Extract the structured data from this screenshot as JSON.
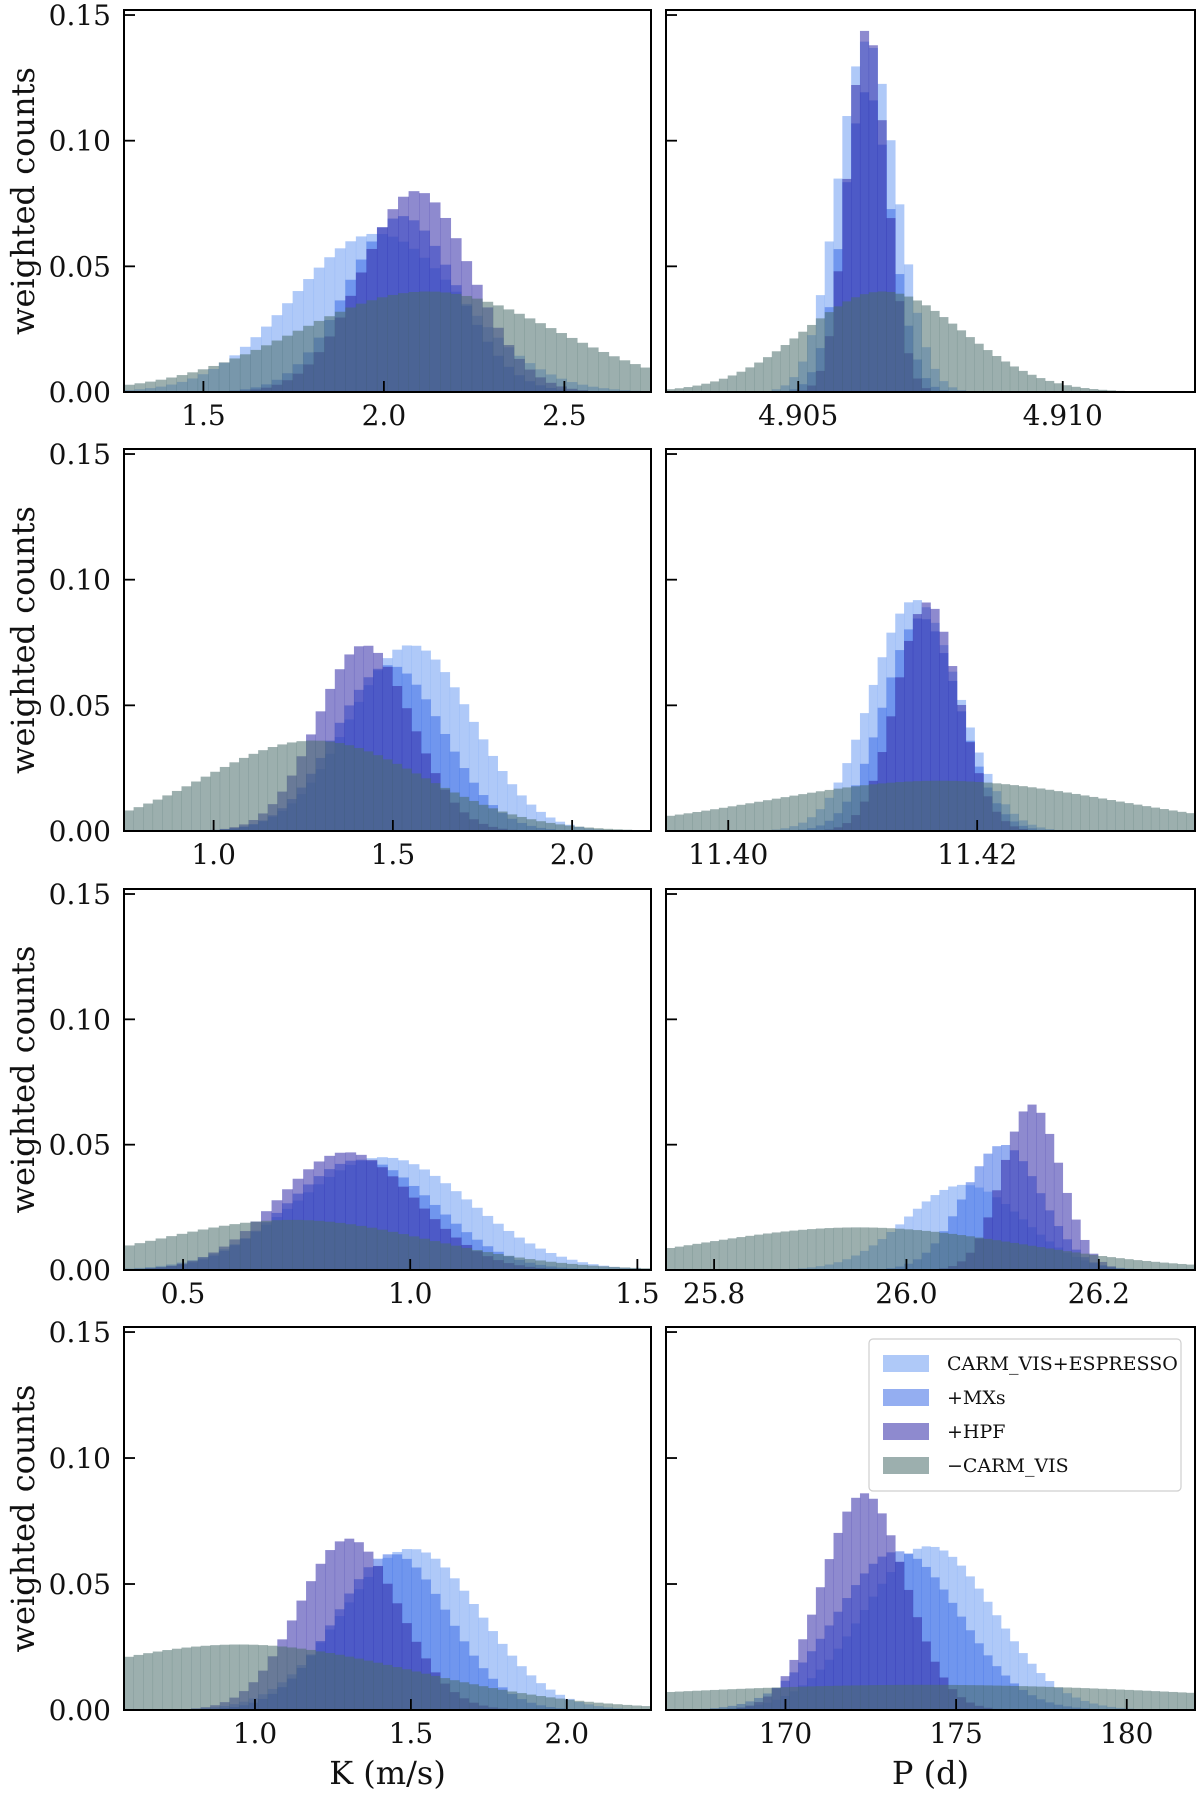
{
  "chart_data": {
    "type": "histogram-grid",
    "rows": 4,
    "columns": 2,
    "ylabel": "weighted counts",
    "xlabels": [
      "K (m/s)",
      "P (d)"
    ],
    "ylim": [
      0,
      0.152
    ],
    "yticks": [
      0.0,
      0.05,
      0.1,
      0.15
    ],
    "ytick_labels": [
      "0.00",
      "0.05",
      "0.10",
      "0.15"
    ],
    "series": [
      {
        "name": "CARM_VIS+ESPRESSO",
        "color": "#6e9cf2",
        "opacity": 0.55
      },
      {
        "name": "+MXs",
        "color": "#3d6ce6",
        "opacity": 0.55
      },
      {
        "name": "+HPF",
        "color": "#322aa8",
        "opacity": 0.55
      },
      {
        "name": "−CARM_VIS",
        "color": "#4b6d6b",
        "opacity": 0.55
      }
    ],
    "legend": {
      "panel": 7,
      "location": "top-right"
    },
    "panels": [
      {
        "row": 0,
        "col": 0,
        "xlim": [
          1.28,
          2.74
        ],
        "xticks": [
          1.5,
          2.0,
          2.5
        ],
        "xtick_labels": [
          "1.5",
          "2.0",
          "2.5"
        ],
        "bins": 50,
        "dists": [
          {
            "mu": 1.98,
            "sigma": 0.23,
            "peak": 0.063
          },
          {
            "mu": 2.05,
            "sigma": 0.15,
            "peak": 0.07
          },
          {
            "mu": 2.09,
            "sigma": 0.15,
            "peak": 0.08
          },
          {
            "mu": 2.12,
            "sigma": 0.36,
            "peak": 0.04
          }
        ]
      },
      {
        "row": 0,
        "col": 1,
        "xlim": [
          4.9025,
          4.9125
        ],
        "xticks": [
          4.905,
          4.91
        ],
        "xtick_labels": [
          "4.905",
          "4.910"
        ],
        "bins": 60,
        "dists": [
          {
            "mu": 4.9063,
            "sigma": 0.00055,
            "peak": 0.14
          },
          {
            "mu": 4.9063,
            "sigma": 0.00045,
            "peak": 0.12
          },
          {
            "mu": 4.9063,
            "sigma": 0.00037,
            "peak": 0.145
          },
          {
            "mu": 4.9066,
            "sigma": 0.0015,
            "peak": 0.04
          }
        ]
      },
      {
        "row": 1,
        "col": 0,
        "xlim": [
          0.75,
          2.22
        ],
        "xticks": [
          1.0,
          1.5,
          2.0
        ],
        "xtick_labels": [
          "1.0",
          "1.5",
          "2.0"
        ],
        "bins": 55,
        "dists": [
          {
            "mu": 1.55,
            "sigma": 0.17,
            "peak": 0.074
          },
          {
            "mu": 1.49,
            "sigma": 0.15,
            "peak": 0.066
          },
          {
            "mu": 1.42,
            "sigma": 0.13,
            "peak": 0.074
          },
          {
            "mu": 1.28,
            "sigma": 0.3,
            "peak": 0.036
          }
        ]
      },
      {
        "row": 1,
        "col": 1,
        "xlim": [
          11.395,
          11.4375
        ],
        "xticks": [
          11.4,
          11.42
        ],
        "xtick_labels": [
          "11.40",
          "11.42"
        ],
        "bins": 60,
        "dists": [
          {
            "mu": 11.415,
            "sigma": 0.0035,
            "peak": 0.092
          },
          {
            "mu": 11.4155,
            "sigma": 0.003,
            "peak": 0.085
          },
          {
            "mu": 11.416,
            "sigma": 0.0025,
            "peak": 0.091
          },
          {
            "mu": 11.417,
            "sigma": 0.014,
            "peak": 0.02
          }
        ]
      },
      {
        "row": 2,
        "col": 0,
        "xlim": [
          0.37,
          1.53
        ],
        "xticks": [
          0.5,
          1.0,
          1.5
        ],
        "xtick_labels": [
          "0.5",
          "1.0",
          "1.5"
        ],
        "bins": 50,
        "dists": [
          {
            "mu": 0.94,
            "sigma": 0.19,
            "peak": 0.045
          },
          {
            "mu": 0.89,
            "sigma": 0.16,
            "peak": 0.044
          },
          {
            "mu": 0.86,
            "sigma": 0.15,
            "peak": 0.047
          },
          {
            "mu": 0.74,
            "sigma": 0.3,
            "peak": 0.02
          }
        ]
      },
      {
        "row": 2,
        "col": 1,
        "xlim": [
          25.75,
          26.3
        ],
        "xticks": [
          25.8,
          26.0,
          26.2
        ],
        "xtick_labels": [
          "25.8",
          "26.0",
          "26.2"
        ],
        "bins": 60,
        "dists": [
          {
            "mu": 26.06,
            "sigma": 0.06,
            "peak": 0.034
          },
          {
            "mu": 26.1,
            "sigma": 0.04,
            "peak": 0.05
          },
          {
            "mu": 26.13,
            "sigma": 0.03,
            "peak": 0.066
          },
          {
            "mu": 25.95,
            "sigma": 0.17,
            "peak": 0.017
          }
        ]
      },
      {
        "row": 3,
        "col": 0,
        "xlim": [
          0.58,
          2.27
        ],
        "xticks": [
          1.0,
          1.5,
          2.0
        ],
        "xtick_labels": [
          "1.0",
          "1.5",
          "2.0"
        ],
        "bins": 55,
        "dists": [
          {
            "mu": 1.5,
            "sigma": 0.22,
            "peak": 0.064
          },
          {
            "mu": 1.44,
            "sigma": 0.18,
            "peak": 0.062
          },
          {
            "mu": 1.3,
            "sigma": 0.16,
            "peak": 0.068
          },
          {
            "mu": 0.95,
            "sigma": 0.55,
            "peak": 0.026
          }
        ]
      },
      {
        "row": 3,
        "col": 1,
        "xlim": [
          166.5,
          182.0
        ],
        "xticks": [
          170,
          175,
          180
        ],
        "xtick_labels": [
          "170",
          "175",
          "180"
        ],
        "bins": 60,
        "dists": [
          {
            "mu": 174.2,
            "sigma": 1.9,
            "peak": 0.065
          },
          {
            "mu": 173.3,
            "sigma": 1.8,
            "peak": 0.063
          },
          {
            "mu": 172.3,
            "sigma": 1.2,
            "peak": 0.086
          },
          {
            "mu": 174.0,
            "sigma": 9.0,
            "peak": 0.01
          }
        ]
      }
    ]
  }
}
